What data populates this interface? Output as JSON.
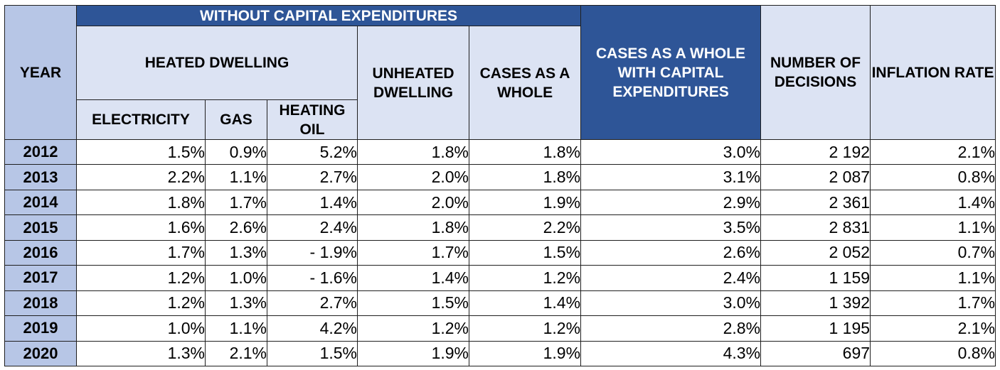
{
  "headers": {
    "year": "YEAR",
    "without_capex": "WITHOUT CAPITAL EXPENDITURES",
    "heated_dwelling": "HEATED DWELLING",
    "electricity": "ELECTRICITY",
    "gas": "GAS",
    "heating_oil": "HEATING OIL",
    "unheated_dwelling": "UNHEATED DWELLING",
    "cases_whole": "CASES AS A WHOLE",
    "cases_whole_capex": "CASES AS A WHOLE WITH CAPITAL EXPENDITURES",
    "number_decisions": "NUMBER OF DECISIONS",
    "inflation_rate": "INFLATION RATE"
  },
  "rows": [
    {
      "year": "2012",
      "electricity": "1.5%",
      "gas": "0.9%",
      "heating_oil": "5.2%",
      "unheated": "1.8%",
      "cases_whole": "1.8%",
      "cases_capex": "3.0%",
      "decisions": "2 192",
      "inflation": "2.1%"
    },
    {
      "year": "2013",
      "electricity": "2.2%",
      "gas": "1.1%",
      "heating_oil": "2.7%",
      "unheated": "2.0%",
      "cases_whole": "1.8%",
      "cases_capex": "3.1%",
      "decisions": "2 087",
      "inflation": "0.8%"
    },
    {
      "year": "2014",
      "electricity": "1.8%",
      "gas": "1.7%",
      "heating_oil": "1.4%",
      "unheated": "2.0%",
      "cases_whole": "1.9%",
      "cases_capex": "2.9%",
      "decisions": "2 361",
      "inflation": "1.4%"
    },
    {
      "year": "2015",
      "electricity": "1.6%",
      "gas": "2.6%",
      "heating_oil": "2.4%",
      "unheated": "1.8%",
      "cases_whole": "2.2%",
      "cases_capex": "3.5%",
      "decisions": "2 831",
      "inflation": "1.1%"
    },
    {
      "year": "2016",
      "electricity": "1.7%",
      "gas": "1.3%",
      "heating_oil": "- 1.9%",
      "unheated": "1.7%",
      "cases_whole": "1.5%",
      "cases_capex": "2.6%",
      "decisions": "2 052",
      "inflation": "0.7%"
    },
    {
      "year": "2017",
      "electricity": "1.2%",
      "gas": "1.0%",
      "heating_oil": "- 1.6%",
      "unheated": "1.4%",
      "cases_whole": "1.2%",
      "cases_capex": "2.4%",
      "decisions": "1 159",
      "inflation": "1.1%"
    },
    {
      "year": "2018",
      "electricity": "1.2%",
      "gas": "1.3%",
      "heating_oil": "2.7%",
      "unheated": "1.5%",
      "cases_whole": "1.4%",
      "cases_capex": "3.0%",
      "decisions": "1 392",
      "inflation": "1.7%"
    },
    {
      "year": "2019",
      "electricity": "1.0%",
      "gas": "1.1%",
      "heating_oil": "4.2%",
      "unheated": "1.2%",
      "cases_whole": "1.2%",
      "cases_capex": "2.8%",
      "decisions": "1 195",
      "inflation": "2.1%"
    },
    {
      "year": "2020",
      "electricity": "1.3%",
      "gas": "2.1%",
      "heating_oil": "1.5%",
      "unheated": "1.9%",
      "cases_whole": "1.9%",
      "cases_capex": "4.3%",
      "decisions": "697",
      "inflation": "0.8%"
    }
  ],
  "colors": {
    "header_dark": "#2e5597",
    "header_light": "#dce3f3",
    "year_column": "#b7c6e6",
    "border": "#1f1f1f"
  }
}
